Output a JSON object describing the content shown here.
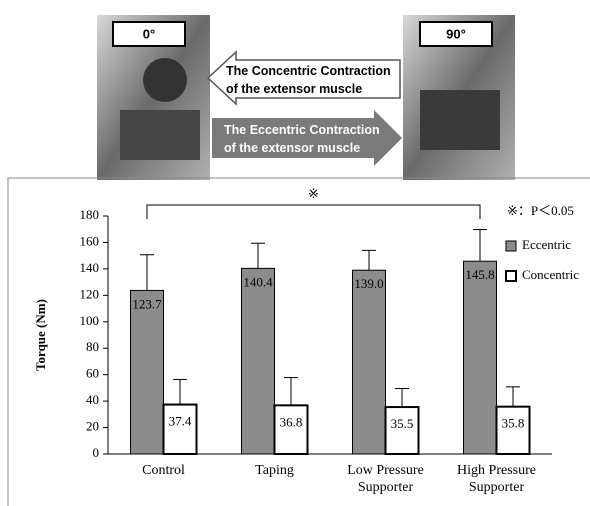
{
  "photo_labels": [
    "0°",
    "90°"
  ],
  "arrows": {
    "concentric": "The Concentric Contraction\nof the extensor muscle",
    "eccentric": "The Eccentric Contraction\nof the extensor muscle"
  },
  "chart_data": {
    "type": "bar",
    "y_label": "Torque (Nm)",
    "categories": [
      "Control",
      "Taping",
      "Low Pressure\nSupporter",
      "High Pressure\nSupporter"
    ],
    "series": [
      {
        "name": "Eccentric",
        "color": "#8c8c8c",
        "values": [
          123.7,
          140.4,
          139.0,
          145.8
        ],
        "value_labels": [
          "123.7",
          "140.4",
          "139.0",
          "145.8"
        ],
        "errors": [
          27,
          19,
          15,
          24
        ]
      },
      {
        "name": "Concentric",
        "color": "#ffffff",
        "values": [
          37.4,
          36.8,
          35.5,
          35.8
        ],
        "value_labels": [
          "37.4",
          "36.8",
          "35.5",
          "35.8"
        ],
        "errors": [
          19,
          21,
          14,
          15
        ]
      }
    ],
    "ylim": [
      0,
      180
    ],
    "yticks": [
      0,
      20,
      40,
      60,
      80,
      100,
      120,
      140,
      160,
      180
    ],
    "bracket_label": "※",
    "annotation": "※：P＜0.05",
    "legend": "right"
  }
}
